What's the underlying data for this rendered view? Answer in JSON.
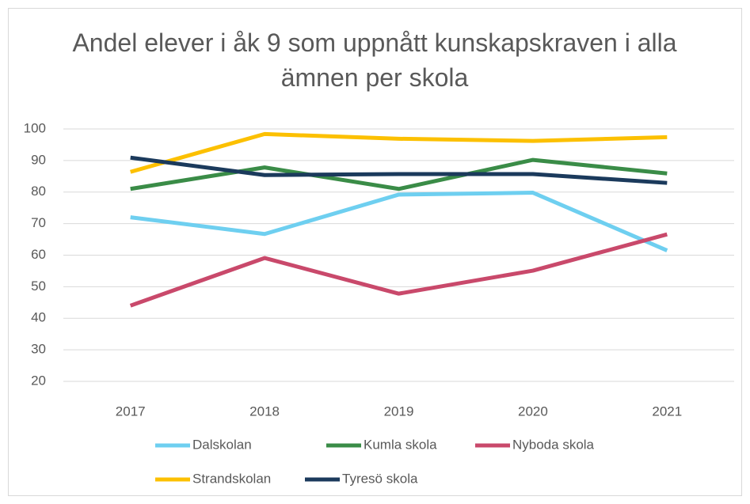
{
  "chart_data": {
    "type": "line",
    "title": "Andel elever i åk 9 som uppnått kunskapskraven i alla ämnen per skola",
    "categories": [
      "2017",
      "2018",
      "2019",
      "2020",
      "2021"
    ],
    "series": [
      {
        "name": "Dalskolan",
        "color": "#6ecff0",
        "values": [
          72,
          66.7,
          79.2,
          79.8,
          61.5
        ]
      },
      {
        "name": "Kumla skola",
        "color": "#3a8c47",
        "values": [
          81,
          87.8,
          81,
          90.2,
          85.9
        ]
      },
      {
        "name": "Nyboda skola",
        "color": "#c9496b",
        "values": [
          44,
          59.1,
          47.8,
          55.1,
          66.6
        ]
      },
      {
        "name": "Strandskolan",
        "color": "#fcc000",
        "values": [
          86.4,
          98.4,
          96.9,
          96.2,
          97.4
        ]
      },
      {
        "name": "Tyresö skola",
        "color": "#1b3a5c",
        "values": [
          90.9,
          85.4,
          85.7,
          85.7,
          82.9
        ]
      }
    ],
    "ylim": [
      20,
      100
    ],
    "yticks": [
      20,
      30,
      40,
      50,
      60,
      70,
      80,
      90,
      100
    ],
    "grid": true
  }
}
